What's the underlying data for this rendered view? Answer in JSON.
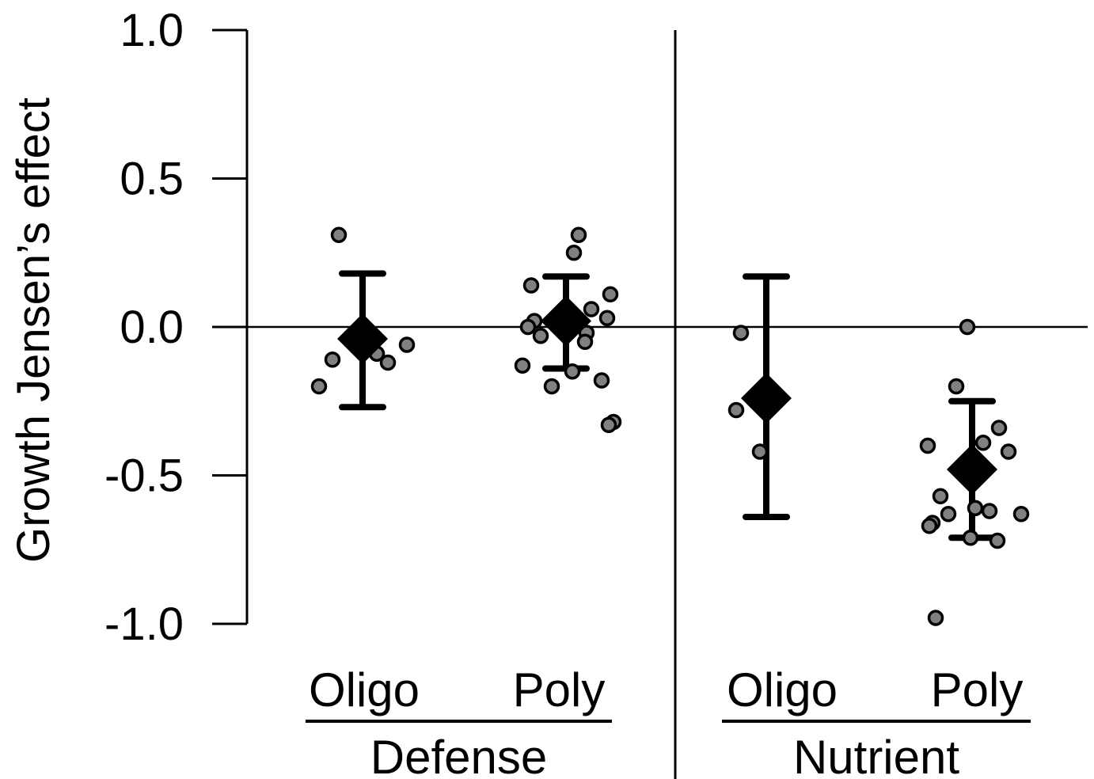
{
  "chart_data": {
    "type": "scatter",
    "ylabel": "Growth Jensen’s effect",
    "ylim": [
      -1.0,
      1.0
    ],
    "yticks": [
      "1.0",
      "0.5",
      "0.0",
      "-0.5",
      "-1.0"
    ],
    "ytick_values": [
      1.0,
      0.5,
      0.0,
      -0.5,
      -1.0
    ],
    "zero_line": true,
    "grid": false,
    "categories": [
      "Oligo",
      "Poly",
      "Oligo",
      "Poly"
    ],
    "groups": [
      {
        "label": "Defense",
        "categories": [
          "Oligo",
          "Poly"
        ]
      },
      {
        "label": "Nutrient",
        "categories": [
          "Oligo",
          "Poly"
        ]
      }
    ],
    "colors": {
      "points": "#808080",
      "mean": "#000000",
      "axis": "#000000"
    },
    "series": [
      {
        "group": "Defense",
        "category": "Oligo",
        "mean": -0.04,
        "err_low": -0.27,
        "err_high": 0.18,
        "points": [
          0.31,
          -0.11,
          -0.2,
          -0.09,
          -0.12,
          -0.06
        ]
      },
      {
        "group": "Defense",
        "category": "Poly",
        "mean": 0.02,
        "err_low": -0.14,
        "err_high": 0.17,
        "points": [
          0.31,
          0.25,
          0.14,
          0.11,
          0.06,
          0.03,
          0.02,
          0.01,
          0.0,
          -0.02,
          -0.03,
          -0.05,
          -0.13,
          -0.15,
          -0.18,
          -0.2,
          -0.32,
          -0.33
        ]
      },
      {
        "group": "Nutrient",
        "category": "Oligo",
        "mean": -0.24,
        "err_low": -0.64,
        "err_high": 0.17,
        "points": [
          -0.02,
          -0.28,
          -0.42
        ]
      },
      {
        "group": "Nutrient",
        "category": "Poly",
        "mean": -0.48,
        "err_low": -0.71,
        "err_high": -0.25,
        "points": [
          0.0,
          -0.2,
          -0.34,
          -0.39,
          -0.4,
          -0.42,
          -0.57,
          -0.61,
          -0.62,
          -0.63,
          -0.63,
          -0.66,
          -0.67,
          -0.71,
          -0.72,
          -0.98
        ]
      }
    ]
  }
}
